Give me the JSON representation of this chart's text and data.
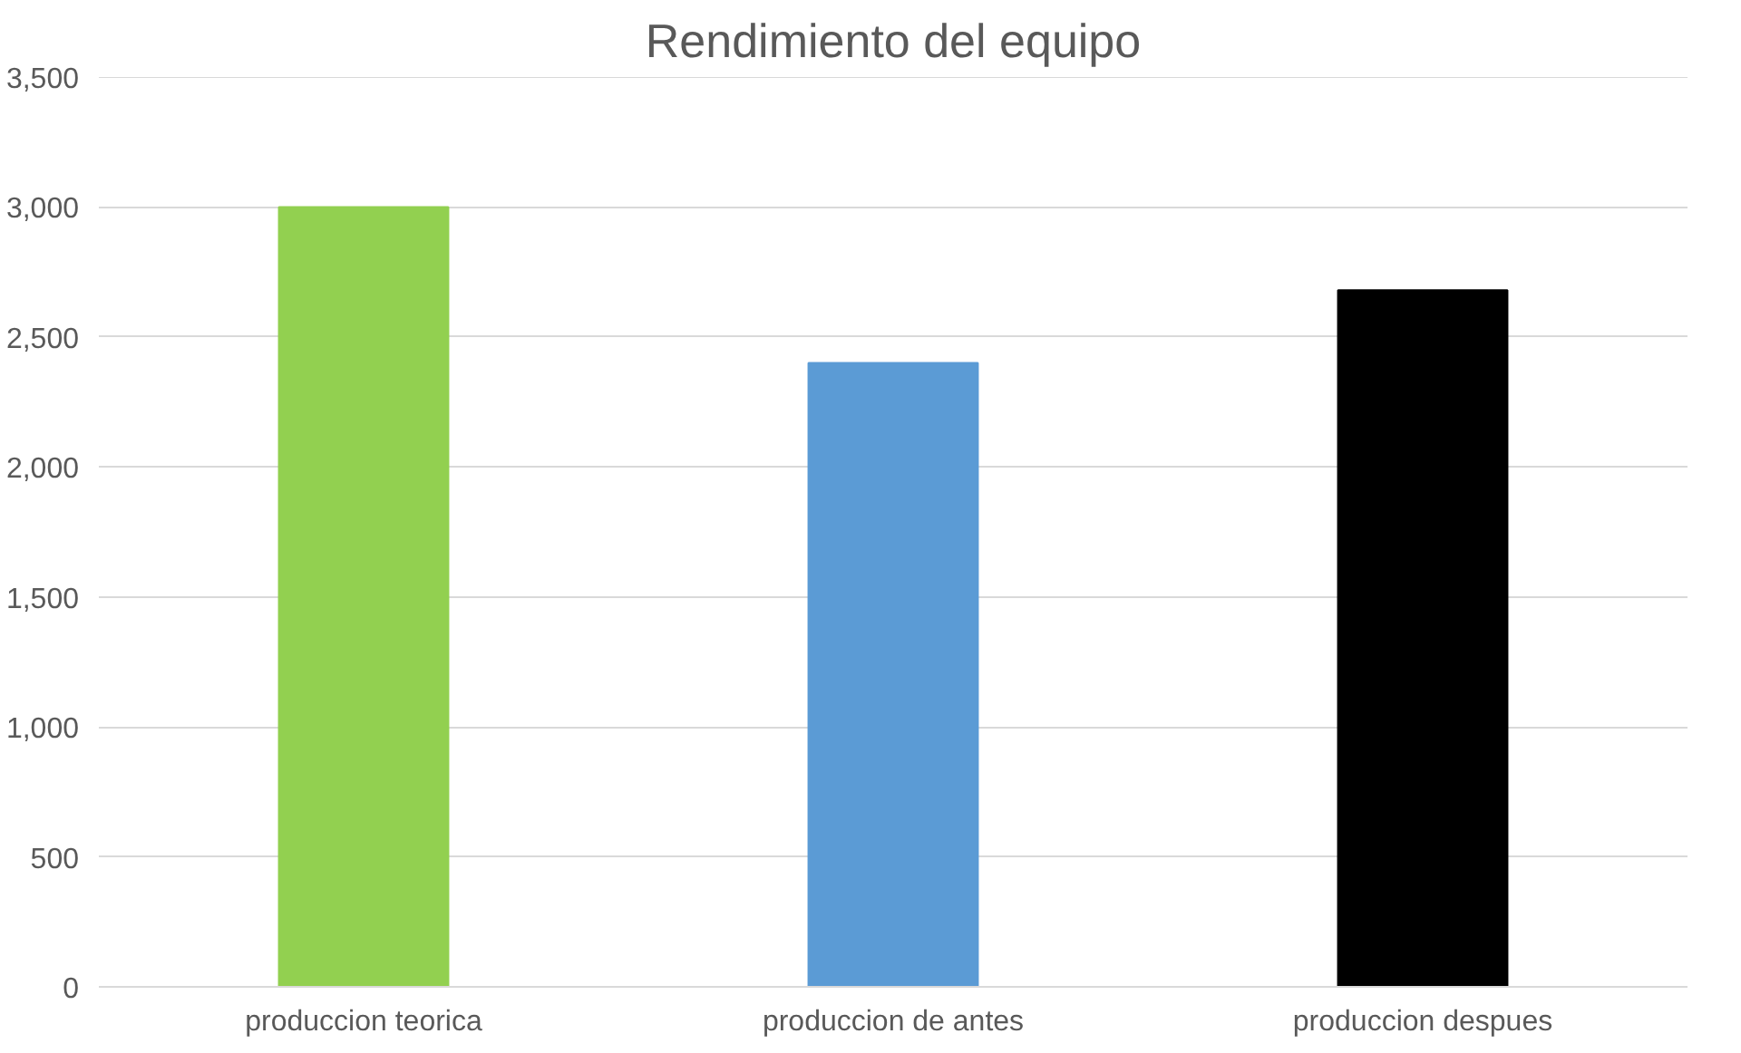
{
  "chart_data": {
    "type": "bar",
    "title": "Rendimiento del equipo",
    "categories": [
      "produccion teorica",
      "produccion de antes",
      "produccion despues"
    ],
    "values": [
      3000,
      2400,
      2680
    ],
    "colors": [
      "#92d050",
      "#5b9bd5",
      "#000000"
    ],
    "ylim": [
      0,
      3500
    ],
    "yticks": [
      {
        "value": 0,
        "label": "0"
      },
      {
        "value": 500,
        "label": "500"
      },
      {
        "value": 1000,
        "label": "1,000"
      },
      {
        "value": 1500,
        "label": "1,500"
      },
      {
        "value": 2000,
        "label": "2,000"
      },
      {
        "value": 2500,
        "label": "2,500"
      },
      {
        "value": 3000,
        "label": "3,000"
      },
      {
        "value": 3500,
        "label": "3,500"
      }
    ],
    "grid": "y"
  }
}
